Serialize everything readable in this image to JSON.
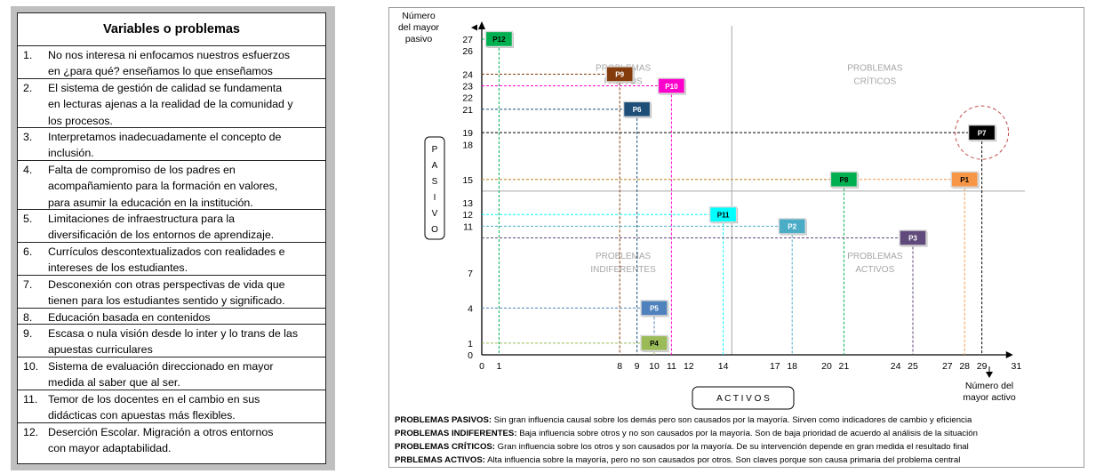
{
  "variables": {
    "title": "Variables o problemas",
    "items": [
      {
        "num": "1.",
        "lines": [
          "No nos interesa ni enfocamos nuestros esfuerzos",
          "en ¿para qué? enseñamos lo que enseñamos"
        ]
      },
      {
        "num": "2.",
        "lines": [
          "El sistema de gestión de calidad se fundamenta",
          "en lecturas ajenas a la realidad de la comunidad y",
          "los procesos."
        ]
      },
      {
        "num": "3.",
        "lines": [
          "Interpretamos inadecuadamente el concepto de",
          "inclusión."
        ]
      },
      {
        "num": "4.",
        "lines": [
          "Falta de compromiso de los padres en",
          "acompañamiento para la formación en valores,",
          "para asumir la educación en la institución."
        ]
      },
      {
        "num": "5.",
        "lines": [
          "Limitaciones de infraestructura para la",
          "diversificación de los entornos de aprendizaje."
        ]
      },
      {
        "num": "6.",
        "lines": [
          "Currículos descontextualizados con realidades e",
          "intereses de los estudiantes."
        ]
      },
      {
        "num": "7.",
        "lines": [
          "Desconexión con otras perspectivas de vida que",
          "tienen para los estudiantes sentido y significado."
        ]
      },
      {
        "num": "8.",
        "lines": [
          "Educación basada en contenidos"
        ]
      },
      {
        "num": "9.",
        "lines": [
          "Escasa o nula visión desde lo inter y lo trans de las",
          "apuestas curriculares"
        ]
      },
      {
        "num": "10.",
        "lines": [
          "Sistema de evaluación direccionado en mayor",
          "medida al saber que al ser."
        ]
      },
      {
        "num": "11.",
        "lines": [
          "Temor de los docentes en el cambio en sus",
          "didácticas con apuestas más flexibles."
        ]
      },
      {
        "num": "12.",
        "lines": [
          "Deserción Escolar. Migración a otros entornos",
          "con mayor adaptabilidad."
        ]
      }
    ]
  },
  "matrix": {
    "y_axis_top_label": [
      "Número",
      "del mayor",
      "pasivo"
    ],
    "y_axis_box_label": [
      "P",
      "A",
      "S",
      "I",
      "V",
      "O"
    ],
    "x_axis_box_label": "A C T I V O S",
    "x_axis_end_label": [
      "Número del",
      "mayor activo"
    ],
    "x_range": [
      0,
      31
    ],
    "y_range": [
      0,
      31
    ],
    "x_ticks": [
      "0",
      "1",
      "8",
      "9",
      "10",
      "11",
      "12",
      "14",
      "17",
      "18",
      "20",
      "21",
      "24",
      "25",
      "27",
      "28",
      "29",
      "31"
    ],
    "y_ticks": [
      "0",
      "1",
      "4",
      "7",
      "11",
      "12",
      "13",
      "15",
      "18",
      "19",
      "21",
      "22",
      "23",
      "24",
      "26",
      "27"
    ],
    "quadrants": [
      {
        "key": "pasivos",
        "lines": [
          "PROBLEMAS",
          "PASIVOS"
        ]
      },
      {
        "key": "criticos",
        "lines": [
          "PROBLEMAS",
          "CRÍTICOS"
        ]
      },
      {
        "key": "indiferentes",
        "lines": [
          "PROBLEMAS",
          "INDIFERENTES"
        ]
      },
      {
        "key": "activos",
        "lines": [
          "PROBLEMAS",
          "ACTIVOS"
        ]
      }
    ],
    "points": [
      {
        "label": "P12",
        "x": 1,
        "y": 27,
        "color": "#00b050",
        "text_color": "#000000"
      },
      {
        "label": "P9",
        "x": 8,
        "y": 24,
        "color": "#843c0c",
        "text_color": "#ffffff"
      },
      {
        "label": "P10",
        "x": 11,
        "y": 23,
        "color": "#ff00cc",
        "text_color": "#ffffff"
      },
      {
        "label": "P6",
        "x": 9,
        "y": 21,
        "color": "#1f4e79",
        "text_color": "#ffffff"
      },
      {
        "label": "P7",
        "x": 29,
        "y": 19,
        "color": "#000000",
        "text_color": "#ffffff"
      },
      {
        "label": "P8",
        "x": 21,
        "y": 15,
        "color": "#00b050",
        "text_color": "#000000"
      },
      {
        "label": "P1",
        "x": 28,
        "y": 15,
        "color": "#f79646",
        "text_color": "#000000"
      },
      {
        "label": "P11",
        "x": 14,
        "y": 12,
        "color": "#00ffff",
        "text_color": "#000000"
      },
      {
        "label": "P2",
        "x": 18,
        "y": 11,
        "color": "#4bacc6",
        "text_color": "#ffffff"
      },
      {
        "label": "P3",
        "x": 25,
        "y": 10,
        "color": "#604a7b",
        "text_color": "#ffffff"
      },
      {
        "label": "P5",
        "x": 10,
        "y": 4,
        "color": "#4f81bd",
        "text_color": "#ffffff"
      },
      {
        "label": "P4",
        "x": 10,
        "y": 1,
        "color": "#9bbb59",
        "text_color": "#000000"
      }
    ],
    "critical_highlight": "P7"
  },
  "legend": [
    {
      "term": "PROBLEMAS PASIVOS:",
      "desc": "Sin gran influencia causal sobre los demás pero son causados por la mayoría. Sirven como indicadores de cambio y eficiencia"
    },
    {
      "term": "PROBLEMAS INDIFERENTES:",
      "desc": "Baja influencia sobre otros y no son causados por la mayoría. Son de baja prioridad de acuerdo al análisis de la situación"
    },
    {
      "term": "PROBLEMAS CRÍTICOS:",
      "desc": "Gran influencia sobre los otros y son causados por la mayoría. De su intervención depende en gran medida el resultado final"
    },
    {
      "term": "PRBLEMAS ACTIVOS:",
      "desc": "Alta influencia sobre la mayoría, pero no son causados por otros. Son claves porque son causa primaria del problema central"
    }
  ]
}
